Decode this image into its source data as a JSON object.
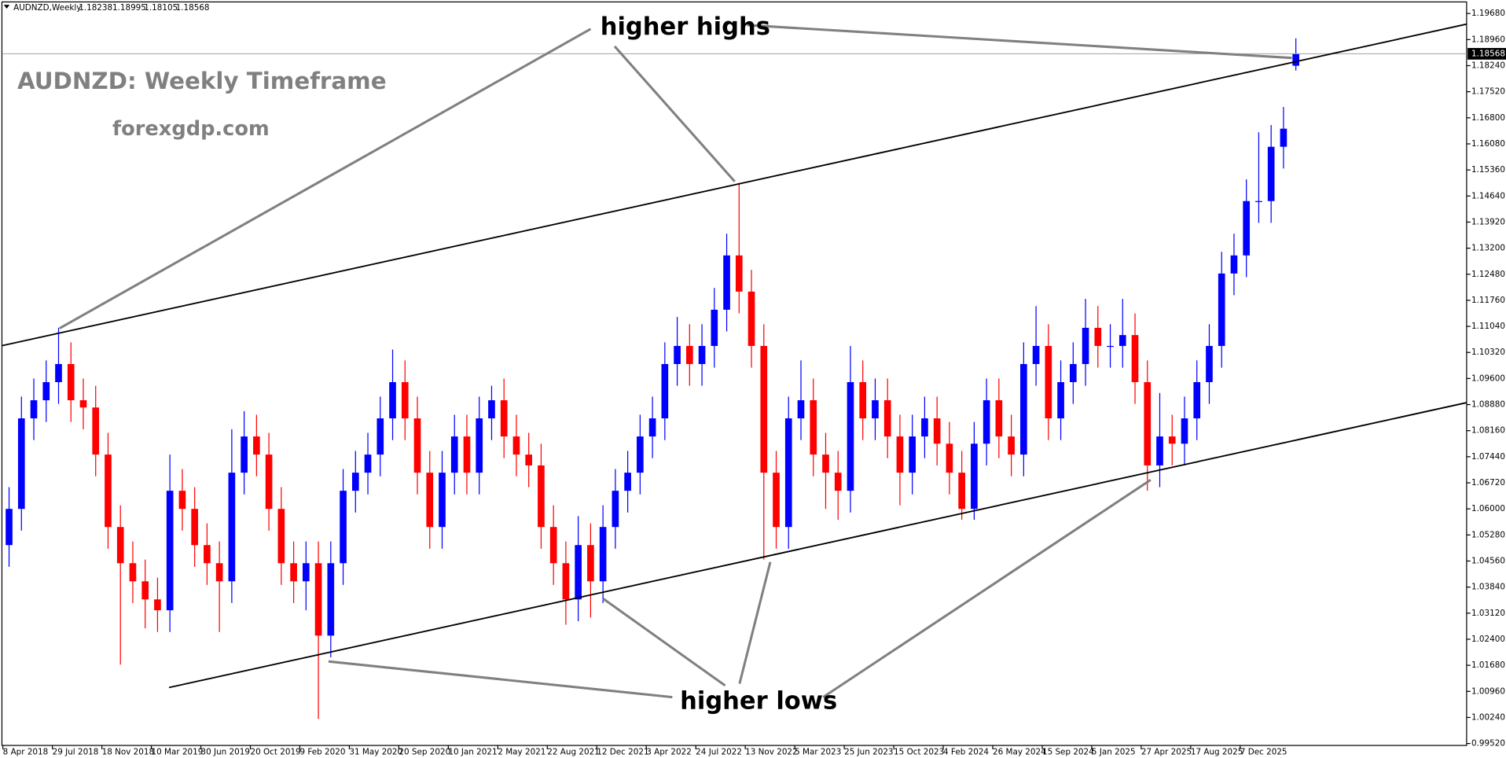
{
  "chart_data": {
    "type": "candlestick",
    "symbol": "AUDNZD,Weekly",
    "title": "AUDNZD: Weekly Timeframe",
    "subtitle": "forexgdp.com",
    "annotations": [
      "higher highs",
      "higher lows"
    ],
    "bull_color": "#0000ff",
    "bear_color": "#ff0000",
    "open": [
      1.05,
      1.06,
      1.085,
      1.09,
      1.095,
      1.1,
      1.09,
      1.088,
      1.075,
      1.055,
      1.045,
      1.04,
      1.035,
      1.032,
      1.065,
      1.06,
      1.05,
      1.045,
      1.04,
      1.07,
      1.08,
      1.075,
      1.06,
      1.045,
      1.04,
      1.045,
      1.025,
      1.045,
      1.065,
      1.07,
      1.075,
      1.085,
      1.095,
      1.085,
      1.07,
      1.055,
      1.07,
      1.08,
      1.07,
      1.085,
      1.09,
      1.08,
      1.075,
      1.072,
      1.055,
      1.045,
      1.035,
      1.05,
      1.04,
      1.055,
      1.065,
      1.07,
      1.08,
      1.085,
      1.1,
      1.105,
      1.1,
      1.105,
      1.115,
      1.13,
      1.12,
      1.105,
      1.07,
      1.055,
      1.085,
      1.09,
      1.075,
      1.07,
      1.065,
      1.095,
      1.085,
      1.09,
      1.08,
      1.07,
      1.08,
      1.085,
      1.078,
      1.07,
      1.06,
      1.078,
      1.09,
      1.08,
      1.075,
      1.1,
      1.105,
      1.085,
      1.095,
      1.1,
      1.11,
      1.105,
      1.105,
      1.108,
      1.095,
      1.072,
      1.08,
      1.078,
      1.085,
      1.095,
      1.105,
      1.125,
      1.13,
      1.145,
      1.145,
      1.16,
      1.18238
    ],
    "high": [
      1.066,
      1.091,
      1.096,
      1.101,
      1.11,
      1.106,
      1.096,
      1.094,
      1.081,
      1.061,
      1.051,
      1.046,
      1.041,
      1.075,
      1.071,
      1.066,
      1.056,
      1.051,
      1.082,
      1.087,
      1.086,
      1.081,
      1.066,
      1.051,
      1.051,
      1.051,
      1.051,
      1.071,
      1.076,
      1.081,
      1.091,
      1.104,
      1.101,
      1.091,
      1.076,
      1.076,
      1.086,
      1.086,
      1.091,
      1.094,
      1.096,
      1.086,
      1.081,
      1.078,
      1.061,
      1.051,
      1.058,
      1.056,
      1.061,
      1.071,
      1.076,
      1.086,
      1.091,
      1.106,
      1.113,
      1.111,
      1.111,
      1.121,
      1.136,
      1.15,
      1.126,
      1.111,
      1.076,
      1.091,
      1.101,
      1.096,
      1.081,
      1.076,
      1.105,
      1.101,
      1.096,
      1.096,
      1.086,
      1.086,
      1.091,
      1.091,
      1.084,
      1.076,
      1.084,
      1.096,
      1.096,
      1.086,
      1.106,
      1.116,
      1.111,
      1.101,
      1.106,
      1.118,
      1.116,
      1.111,
      1.118,
      1.114,
      1.101,
      1.092,
      1.086,
      1.091,
      1.101,
      1.111,
      1.131,
      1.136,
      1.151,
      1.164,
      1.166,
      1.171,
      1.18995
    ],
    "low": [
      1.044,
      1.054,
      1.079,
      1.084,
      1.089,
      1.084,
      1.082,
      1.069,
      1.049,
      1.017,
      1.034,
      1.027,
      1.026,
      1.026,
      1.054,
      1.044,
      1.039,
      1.026,
      1.034,
      1.064,
      1.069,
      1.054,
      1.039,
      1.034,
      1.032,
      1.002,
      1.019,
      1.039,
      1.059,
      1.064,
      1.069,
      1.079,
      1.079,
      1.064,
      1.049,
      1.049,
      1.064,
      1.064,
      1.064,
      1.079,
      1.074,
      1.069,
      1.066,
      1.049,
      1.039,
      1.028,
      1.029,
      1.03,
      1.034,
      1.049,
      1.059,
      1.064,
      1.074,
      1.079,
      1.094,
      1.094,
      1.094,
      1.099,
      1.109,
      1.114,
      1.099,
      1.046,
      1.049,
      1.049,
      1.079,
      1.069,
      1.06,
      1.057,
      1.059,
      1.079,
      1.079,
      1.074,
      1.061,
      1.064,
      1.074,
      1.072,
      1.064,
      1.057,
      1.057,
      1.072,
      1.074,
      1.069,
      1.069,
      1.094,
      1.079,
      1.079,
      1.089,
      1.094,
      1.099,
      1.099,
      1.099,
      1.089,
      1.065,
      1.066,
      1.072,
      1.072,
      1.079,
      1.089,
      1.099,
      1.119,
      1.124,
      1.139,
      1.139,
      1.154,
      1.18105
    ],
    "close": [
      1.06,
      1.085,
      1.09,
      1.095,
      1.1,
      1.09,
      1.088,
      1.075,
      1.055,
      1.045,
      1.04,
      1.035,
      1.032,
      1.065,
      1.06,
      1.05,
      1.045,
      1.04,
      1.07,
      1.08,
      1.075,
      1.06,
      1.045,
      1.04,
      1.045,
      1.025,
      1.045,
      1.065,
      1.07,
      1.075,
      1.085,
      1.095,
      1.085,
      1.07,
      1.055,
      1.07,
      1.08,
      1.07,
      1.085,
      1.09,
      1.08,
      1.075,
      1.072,
      1.055,
      1.045,
      1.035,
      1.05,
      1.04,
      1.055,
      1.065,
      1.07,
      1.08,
      1.085,
      1.1,
      1.105,
      1.1,
      1.105,
      1.115,
      1.13,
      1.12,
      1.105,
      1.07,
      1.055,
      1.085,
      1.09,
      1.075,
      1.07,
      1.065,
      1.095,
      1.085,
      1.09,
      1.08,
      1.07,
      1.08,
      1.085,
      1.078,
      1.07,
      1.06,
      1.078,
      1.09,
      1.08,
      1.075,
      1.1,
      1.105,
      1.085,
      1.095,
      1.1,
      1.11,
      1.105,
      1.105,
      1.108,
      1.095,
      1.072,
      1.08,
      1.078,
      1.085,
      1.095,
      1.105,
      1.125,
      1.13,
      1.145,
      1.145,
      1.16,
      1.165,
      1.18568
    ],
    "ylim": [
      0.99467,
      1.2
    ],
    "yticks": [
      {
        "value": 0.9952,
        "label": "0.99520"
      },
      {
        "value": 1.0024,
        "label": "1.00240"
      },
      {
        "value": 1.0096,
        "label": "1.00960"
      },
      {
        "value": 1.0168,
        "label": "1.01680"
      },
      {
        "value": 1.024,
        "label": "1.02400"
      },
      {
        "value": 1.0312,
        "label": "1.03120"
      },
      {
        "value": 1.0384,
        "label": "1.03840"
      },
      {
        "value": 1.0456,
        "label": "1.04560"
      },
      {
        "value": 1.0528,
        "label": "1.05280"
      },
      {
        "value": 1.06,
        "label": "1.06000"
      },
      {
        "value": 1.0672,
        "label": "1.06720"
      },
      {
        "value": 1.0744,
        "label": "1.07440"
      },
      {
        "value": 1.0816,
        "label": "1.08160"
      },
      {
        "value": 1.0888,
        "label": "1.08880"
      },
      {
        "value": 1.096,
        "label": "1.09600"
      },
      {
        "value": 1.1032,
        "label": "1.10320"
      },
      {
        "value": 1.1104,
        "label": "1.11040"
      },
      {
        "value": 1.1176,
        "label": "1.11760"
      },
      {
        "value": 1.1248,
        "label": "1.12480"
      },
      {
        "value": 1.132,
        "label": "1.13200"
      },
      {
        "value": 1.1392,
        "label": "1.13920"
      },
      {
        "value": 1.1464,
        "label": "1.14640"
      },
      {
        "value": 1.1536,
        "label": "1.15360"
      },
      {
        "value": 1.1608,
        "label": "1.16080"
      },
      {
        "value": 1.168,
        "label": "1.16800"
      },
      {
        "value": 1.1752,
        "label": "1.17520"
      },
      {
        "value": 1.1824,
        "label": "1.18240"
      },
      {
        "value": 1.1896,
        "label": "1.18960"
      },
      {
        "value": 1.1968,
        "label": "1.19680"
      }
    ],
    "xlim": [
      0,
      118.3
    ],
    "xticks": [
      {
        "value": 0,
        "label": "8 Apr 2018"
      },
      {
        "value": 4,
        "label": "29 Jul 2018"
      },
      {
        "value": 8,
        "label": "18 Nov 2018"
      },
      {
        "value": 12,
        "label": "10 Mar 2019"
      },
      {
        "value": 16,
        "label": "30 Jun 2019"
      },
      {
        "value": 20,
        "label": "20 Oct 2019"
      },
      {
        "value": 24,
        "label": "9 Feb 2020"
      },
      {
        "value": 28,
        "label": "31 May 2020"
      },
      {
        "value": 32,
        "label": "20 Sep 2020"
      },
      {
        "value": 36,
        "label": "10 Jan 2021"
      },
      {
        "value": 40,
        "label": "2 May 2021"
      },
      {
        "value": 44,
        "label": "22 Aug 2021"
      },
      {
        "value": 48,
        "label": "12 Dec 2021"
      },
      {
        "value": 52,
        "label": "3 Apr 2022"
      },
      {
        "value": 56,
        "label": "24 Jul 2022"
      },
      {
        "value": 60,
        "label": "13 Nov 2022"
      },
      {
        "value": 64,
        "label": "5 Mar 2023"
      },
      {
        "value": 68,
        "label": "25 Jun 2023"
      },
      {
        "value": 72,
        "label": "15 Oct 2023"
      },
      {
        "value": 76,
        "label": "4 Feb 2024"
      },
      {
        "value": 80,
        "label": "26 May 2024"
      },
      {
        "value": 84,
        "label": "15 Sep 2024"
      },
      {
        "value": 88,
        "label": "5 Jan 2025"
      },
      {
        "value": 92,
        "label": "27 Apr 2025"
      },
      {
        "value": 96,
        "label": "17 Aug 2025"
      },
      {
        "value": 100,
        "label": "7 Dec 2025"
      }
    ]
  }
}
